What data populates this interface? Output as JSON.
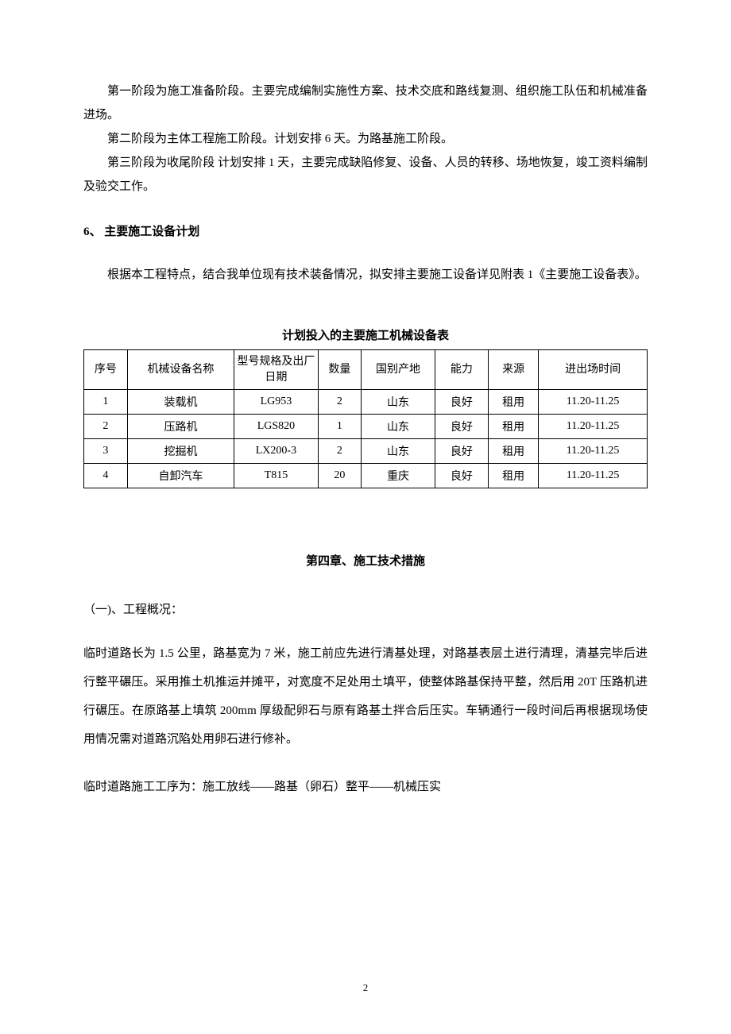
{
  "para1": "第一阶段为施工准备阶段。主要完成编制实施性方案、技术交底和路线复测、组织施工队伍和机械准备进场。",
  "para2": "第二阶段为主体工程施工阶段。计划安排 6 天。为路基施工阶段。",
  "para3": "第三阶段为收尾阶段 计划安排 1 天，主要完成缺陷修复、设备、人员的转移、场地恢复，竣工资料编制及验交工作。",
  "heading6": "6、  主要施工设备计划",
  "para4": "根据本工程特点，结合我单位现有技术装备情况，拟安排主要施工设备详见附表 1《主要施工设备表》。",
  "tableTitle": "计划投入的主要施工机械设备表",
  "table": {
    "headers": {
      "seq": "序号",
      "name": "机械设备名称",
      "model": "型号规格及出厂日期",
      "qty": "数量",
      "origin": "国别产地",
      "cap": "能力",
      "src": "来源",
      "time": "进出场时间"
    },
    "rows": [
      {
        "seq": "1",
        "name": "装载机",
        "model": "LG953",
        "qty": "2",
        "origin": "山东",
        "cap": "良好",
        "src": "租用",
        "time": "11.20-11.25"
      },
      {
        "seq": "2",
        "name": "压路机",
        "model": "LGS820",
        "qty": "1",
        "origin": "山东",
        "cap": "良好",
        "src": "租用",
        "time": "11.20-11.25"
      },
      {
        "seq": "3",
        "name": "挖掘机",
        "model": "LX200-3",
        "qty": "2",
        "origin": "山东",
        "cap": "良好",
        "src": "租用",
        "time": "11.20-11.25"
      },
      {
        "seq": "4",
        "name": "自卸汽车",
        "model": "T815",
        "qty": "20",
        "origin": "重庆",
        "cap": "良好",
        "src": "租用",
        "time": "11.20-11.25"
      }
    ]
  },
  "chapterTitle": "第四章、施工技术措施",
  "subHeading": "（一)、工程概况：",
  "bodyPara1": "临时道路长为 1.5 公里，路基宽为 7 米，施工前应先进行清基处理，对路基表层土进行清理，清基完毕后进行整平碾压。采用推土机推运并摊平，对宽度不足处用土填平，使整体路基保持平整，然后用 20T 压路机进行碾压。在原路基上填筑 200mm 厚级配卵石与原有路基土拌合后压实。车辆通行一段时间后再根据现场使用情况需对道路沉陷处用卵石进行修补。",
  "bodyPara2": "临时道路施工工序为：施工放线——路基（卵石）整平——机械压实",
  "pageNumber": "2"
}
